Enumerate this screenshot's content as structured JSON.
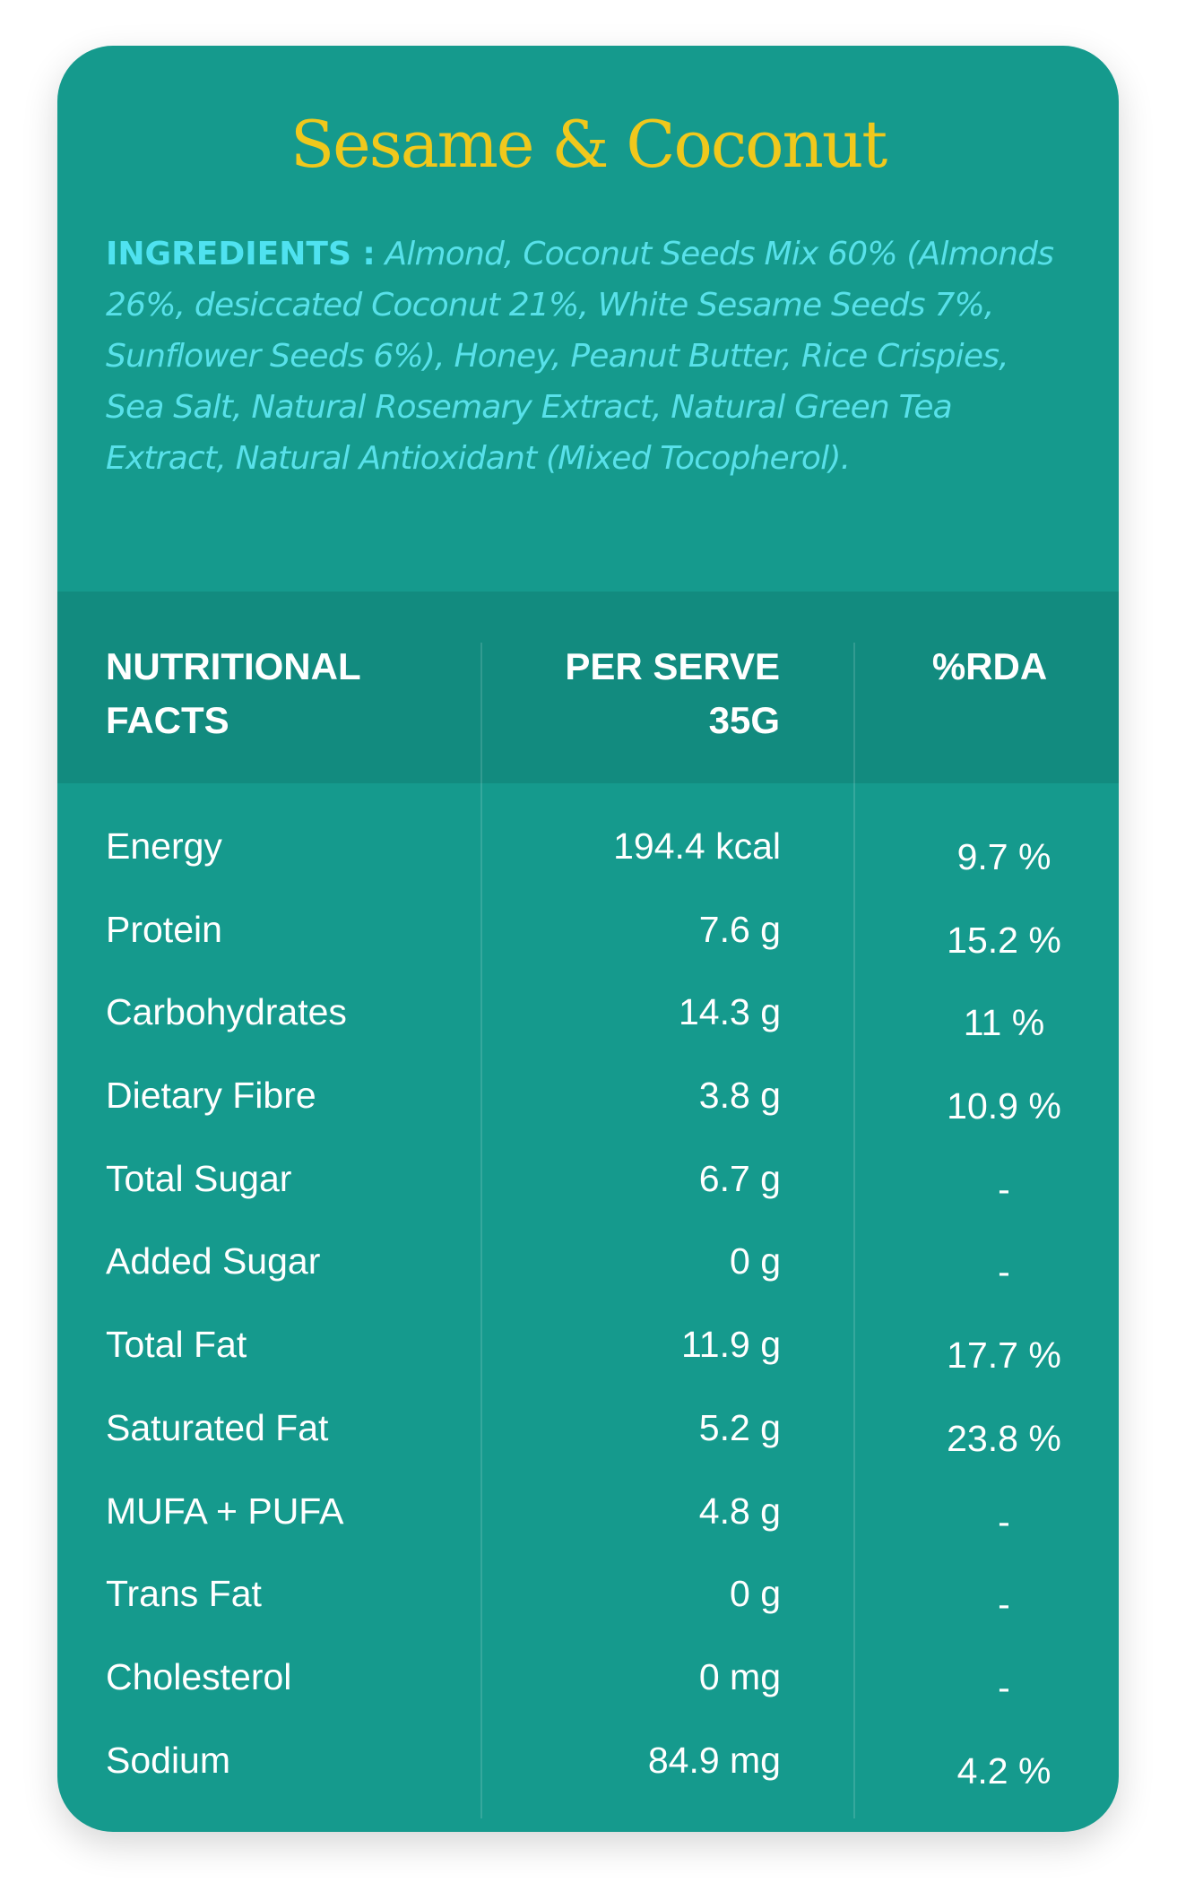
{
  "title": "Sesame & Coconut",
  "ingredients": {
    "label": "INGREDIENTS :",
    "text": "Almond, Coconut Seeds Mix 60% (Almonds 26%, desiccated Coconut 21%, White Sesame Seeds 7%, Sunflower Seeds 6%), Honey, Peanut Butter, Rice Crispies, Sea Salt, Natural Rosemary Extract, Natural Green Tea Extract, Natural Antioxidant (Mixed Tocopherol)."
  },
  "table": {
    "headers": {
      "name_line1": "NUTRITIONAL",
      "name_line2": "FACTS",
      "per_line1": "PER SERVE",
      "per_line2": "35G",
      "rda": "%RDA"
    },
    "rows": [
      {
        "name": "Energy",
        "per_serve": "194.4 kcal",
        "rda": "9.7 %"
      },
      {
        "name": "Protein",
        "per_serve": "7.6 g",
        "rda": "15.2 %"
      },
      {
        "name": "Carbohydrates",
        "per_serve": "14.3 g",
        "rda": "11 %"
      },
      {
        "name": "Dietary Fibre",
        "per_serve": "3.8 g",
        "rda": "10.9 %"
      },
      {
        "name": "Total Sugar",
        "per_serve": "6.7 g",
        "rda": "-"
      },
      {
        "name": "Added Sugar",
        "per_serve": "0 g",
        "rda": "-"
      },
      {
        "name": "Total Fat",
        "per_serve": "11.9 g",
        "rda": "17.7 %"
      },
      {
        "name": "Saturated Fat",
        "per_serve": "5.2 g",
        "rda": "23.8 %"
      },
      {
        "name": "MUFA + PUFA",
        "per_serve": "4.8 g",
        "rda": "-"
      },
      {
        "name": "Trans Fat",
        "per_serve": "0 g",
        "rda": "-"
      },
      {
        "name": "Cholesterol",
        "per_serve": "0 mg",
        "rda": "-"
      },
      {
        "name": "Sodium",
        "per_serve": "84.9 mg",
        "rda": "4.2 %"
      }
    ]
  }
}
